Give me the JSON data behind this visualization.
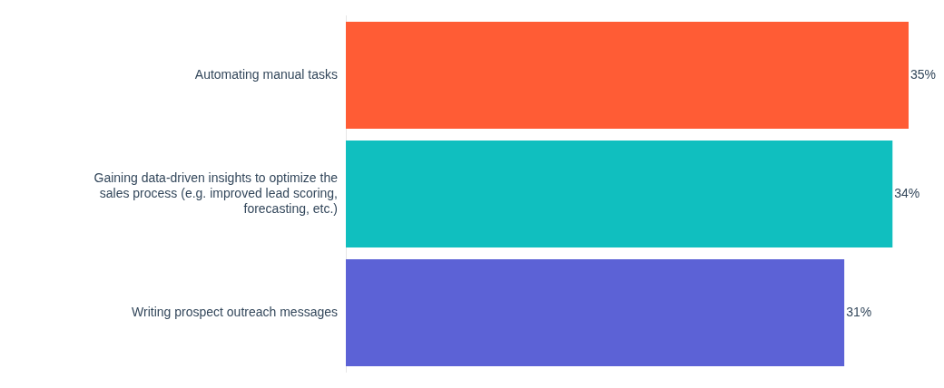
{
  "chart_data": {
    "type": "bar",
    "orientation": "horizontal",
    "categories": [
      "Automating manual tasks",
      "Gaining data-driven insights to optimize the sales process (e.g. improved lead scoring, forecasting, etc.)",
      "Writing prospect outreach messages"
    ],
    "values": [
      35,
      34,
      31
    ],
    "colors": [
      "#ff5c35",
      "#10bfbf",
      "#5c62d6"
    ],
    "xlim": [
      0,
      35
    ],
    "data_labels": true,
    "value_labels": [
      "35%",
      "34%",
      "31%"
    ],
    "tick_labels": "y",
    "legend": false
  }
}
